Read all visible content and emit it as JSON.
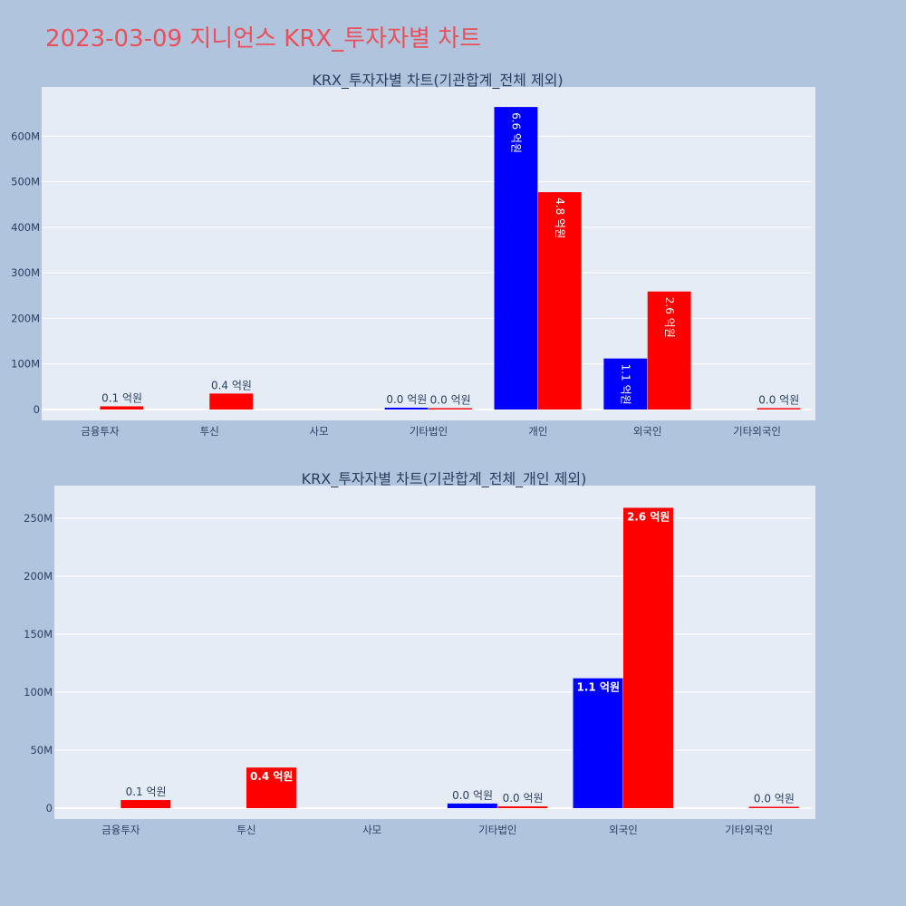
{
  "page_title": "2023-03-09 지니언스 KRX_투자자별 차트",
  "colors": {
    "buy": "#0000ff",
    "sell": "#ff0000",
    "plot_bg": "#e5ecf6",
    "page_bg": "#b0c4de",
    "title": "#e8505b"
  },
  "chart_data": [
    {
      "type": "bar",
      "title": "KRX_투자자별 차트(기관합계_전체 제외)",
      "categories": [
        "금융투자",
        "투신",
        "사모",
        "기타법인",
        "개인",
        "외국인",
        "기타외국인"
      ],
      "yticks": [
        "0",
        "100M",
        "200M",
        "300M",
        "400M",
        "500M",
        "600M"
      ],
      "ylim": [
        0,
        700000000
      ],
      "grid": true,
      "series": [
        {
          "color": "#0000ff",
          "values": [
            0,
            0,
            0,
            4000000,
            664000000,
            112000000,
            0
          ],
          "labels": [
            "",
            "",
            "",
            "0.0 억원",
            "6.6 억원",
            "1.1 억원",
            ""
          ]
        },
        {
          "color": "#ff0000",
          "values": [
            7000000,
            35000000,
            0,
            1500000,
            477000000,
            259000000,
            400000
          ],
          "labels": [
            "0.1 억원",
            "0.4 억원",
            "",
            "0.0 억원",
            "4.8 억원",
            "2.6 억원",
            "0.0 억원"
          ]
        }
      ]
    },
    {
      "type": "bar",
      "title": "KRX_투자자별 차트(기관합계_전체_개인 제외)",
      "categories": [
        "금융투자",
        "투신",
        "사모",
        "기타법인",
        "외국인",
        "기타외국인"
      ],
      "yticks": [
        "0",
        "50M",
        "100M",
        "150M",
        "200M",
        "250M"
      ],
      "ylim": [
        0,
        275000000
      ],
      "grid": true,
      "series": [
        {
          "color": "#0000ff",
          "values": [
            0,
            0,
            0,
            4000000,
            112000000,
            0
          ],
          "labels": [
            "",
            "",
            "",
            "0.0 억원",
            "1.1 억원",
            ""
          ]
        },
        {
          "color": "#ff0000",
          "values": [
            7000000,
            35000000,
            0,
            1500000,
            259000000,
            400000
          ],
          "labels": [
            "0.1 억원",
            "0.4 억원",
            "",
            "0.0 억원",
            "2.6 억원",
            "0.0 억원"
          ]
        }
      ]
    }
  ]
}
